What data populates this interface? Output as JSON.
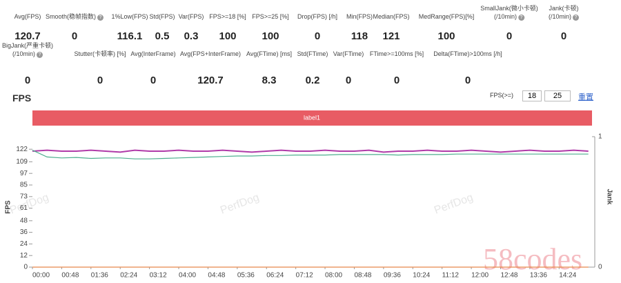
{
  "stats": {
    "row1": [
      {
        "label": "Avg(FPS)",
        "value": "120.7"
      },
      {
        "label": "Smooth(稳帧指数)",
        "value": "0",
        "help": "?"
      },
      {
        "label": "1%Low(FPS)",
        "value": "116.1"
      },
      {
        "label": "Std(FPS)",
        "value": "0.5"
      },
      {
        "label": "Var(FPS)",
        "value": "0.3"
      },
      {
        "label": "FPS>=18 [%]",
        "value": "100"
      },
      {
        "label": "FPS>=25 [%]",
        "value": "100"
      },
      {
        "label": "Drop(FPS) [/h]",
        "value": "0"
      },
      {
        "label": "Min(FPS)",
        "value": "118"
      },
      {
        "label": "Median(FPS)",
        "value": "121"
      },
      {
        "label": "MedRange(FPS)[%]",
        "value": "100"
      },
      {
        "label": "SmallJank(微小卡顿)",
        "label2": "(/10min)",
        "value": "0",
        "help": "?"
      },
      {
        "label": "Jank(卡顿)",
        "label2": "(/10min)",
        "value": "0",
        "help": "?"
      }
    ],
    "row2": [
      {
        "label": "BigJank(严重卡顿)",
        "label2": "(/10min)",
        "value": "0",
        "help": "?"
      },
      {
        "label": "Stutter(卡顿率) [%]",
        "value": "0"
      },
      {
        "label": "Avg(InterFrame)",
        "value": "0"
      },
      {
        "label": "Avg(FPS+InterFrame)",
        "value": "120.7"
      },
      {
        "label": "Avg(FTime) [ms]",
        "value": "8.3"
      },
      {
        "label": "Std(FTime)",
        "value": "0.2"
      },
      {
        "label": "Var(FTime)",
        "value": "0"
      },
      {
        "label": "FTime>=100ms [%]",
        "value": "0"
      },
      {
        "label": "Delta(FTime)>100ms [/h]",
        "value": "0"
      }
    ]
  },
  "controls": {
    "threshold_label": "FPS(>=)",
    "threshold1": "18",
    "threshold2": "25",
    "reset": "重置"
  },
  "watermarks": [
    "PerfDog",
    "58codes"
  ],
  "chart_data": {
    "type": "line",
    "title": "FPS",
    "band_label": "label1",
    "band_color": "#e85c64",
    "ylabel": "FPS",
    "y2label": "Jank",
    "x": [
      0,
      24,
      48,
      72,
      96,
      120,
      144,
      168,
      192,
      216,
      240,
      264,
      288,
      312,
      336,
      360,
      384,
      408,
      432,
      456,
      480,
      504,
      528,
      552,
      576,
      600,
      624,
      648,
      672,
      696,
      720,
      744,
      768,
      792,
      816,
      840,
      864,
      888,
      912
    ],
    "series": [
      {
        "color": "#b03aa8",
        "values": [
          120,
          121,
          120,
          120,
          121,
          120,
          119,
          121,
          120,
          120,
          121,
          120,
          120,
          121,
          120,
          119,
          120,
          121,
          120,
          120,
          121,
          120,
          120,
          121,
          119,
          120,
          120,
          121,
          120,
          120,
          121,
          120,
          119,
          120,
          121,
          120,
          120,
          121,
          120
        ]
      },
      {
        "color": "#4caf8e",
        "values": [
          121,
          114,
          113,
          113.5,
          112.5,
          113,
          113,
          112,
          112,
          112.5,
          113,
          113.5,
          114,
          114.5,
          115,
          115,
          115.5,
          115.5,
          116,
          116,
          116,
          116.5,
          116.5,
          116.5,
          116.5,
          116,
          116.5,
          116.5,
          116.5,
          117,
          117,
          117,
          117,
          117,
          117,
          117,
          117,
          117,
          117
        ]
      },
      {
        "color": "#e8884a",
        "axis": "y2",
        "values": [
          0,
          0,
          0,
          0,
          0,
          0,
          0,
          0,
          0,
          0,
          0,
          0,
          0,
          0,
          0,
          0,
          0,
          0,
          0,
          0,
          0,
          0,
          0,
          0,
          0,
          0,
          0,
          0,
          0,
          0,
          0,
          0,
          0,
          0,
          0,
          0,
          0,
          0,
          0
        ]
      }
    ],
    "xlim": [
      0,
      918
    ],
    "xticks": [
      {
        "value": 0,
        "label": "00:00"
      },
      {
        "value": 48,
        "label": "00:48"
      },
      {
        "value": 96,
        "label": "01:36"
      },
      {
        "value": 144,
        "label": "02:24"
      },
      {
        "value": 192,
        "label": "03:12"
      },
      {
        "value": 240,
        "label": "04:00"
      },
      {
        "value": 288,
        "label": "04:48"
      },
      {
        "value": 336,
        "label": "05:36"
      },
      {
        "value": 384,
        "label": "06:24"
      },
      {
        "value": 432,
        "label": "07:12"
      },
      {
        "value": 480,
        "label": "08:00"
      },
      {
        "value": 528,
        "label": "08:48"
      },
      {
        "value": 576,
        "label": "09:36"
      },
      {
        "value": 624,
        "label": "10:24"
      },
      {
        "value": 672,
        "label": "11:12"
      },
      {
        "value": 720,
        "label": "12:00"
      },
      {
        "value": 768,
        "label": "12:48"
      },
      {
        "value": 816,
        "label": "13:36"
      },
      {
        "value": 864,
        "label": "14:24"
      }
    ],
    "ylim": [
      0,
      135
    ],
    "yticks": [
      0,
      12,
      24,
      36,
      48,
      61,
      73,
      85,
      97,
      109,
      122
    ],
    "y2lim": [
      0,
      1
    ],
    "y2ticks": [
      0,
      1
    ]
  }
}
